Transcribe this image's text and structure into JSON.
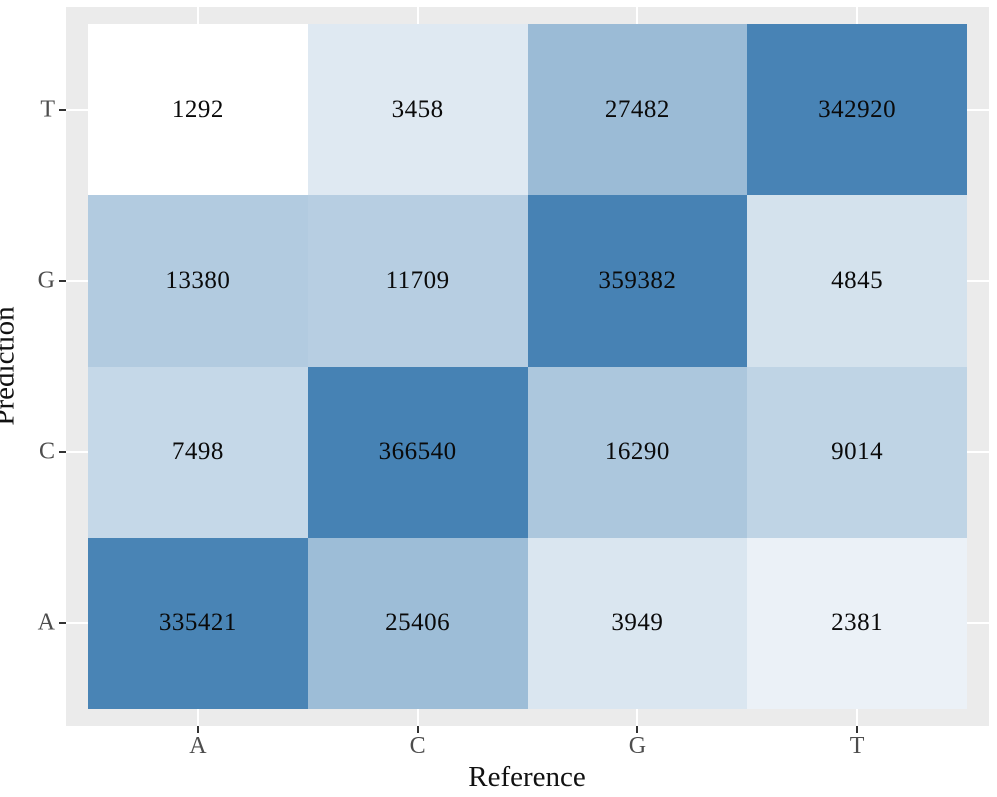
{
  "chart_data": {
    "type": "heatmap",
    "title": "",
    "xlabel": "Reference",
    "ylabel": "Prediction",
    "x_categories": [
      "A",
      "C",
      "G",
      "T"
    ],
    "y_categories_top_to_bottom": [
      "T",
      "G",
      "C",
      "A"
    ],
    "rows_top_to_bottom": [
      [
        1292,
        3458,
        27482,
        342920
      ],
      [
        13380,
        11709,
        359382,
        4845
      ],
      [
        7498,
        366540,
        16290,
        9014
      ],
      [
        335421,
        25406,
        3949,
        2381
      ]
    ],
    "color_scale": {
      "type": "log",
      "low_color": "#FFFFFF",
      "high_color": "#4682B4",
      "domain_min": 1292,
      "domain_max": 366540
    },
    "legend_position": "none",
    "grid": "on",
    "colors": {
      "panel_background": "#EBEBEB",
      "gridline": "#FFFFFF",
      "tick_label": "#4D4D4D",
      "tick_mark": "#333333",
      "axis_title": "#111111",
      "cell_text": "#0a0a0a",
      "figure_background": "#FFFFFF"
    }
  }
}
